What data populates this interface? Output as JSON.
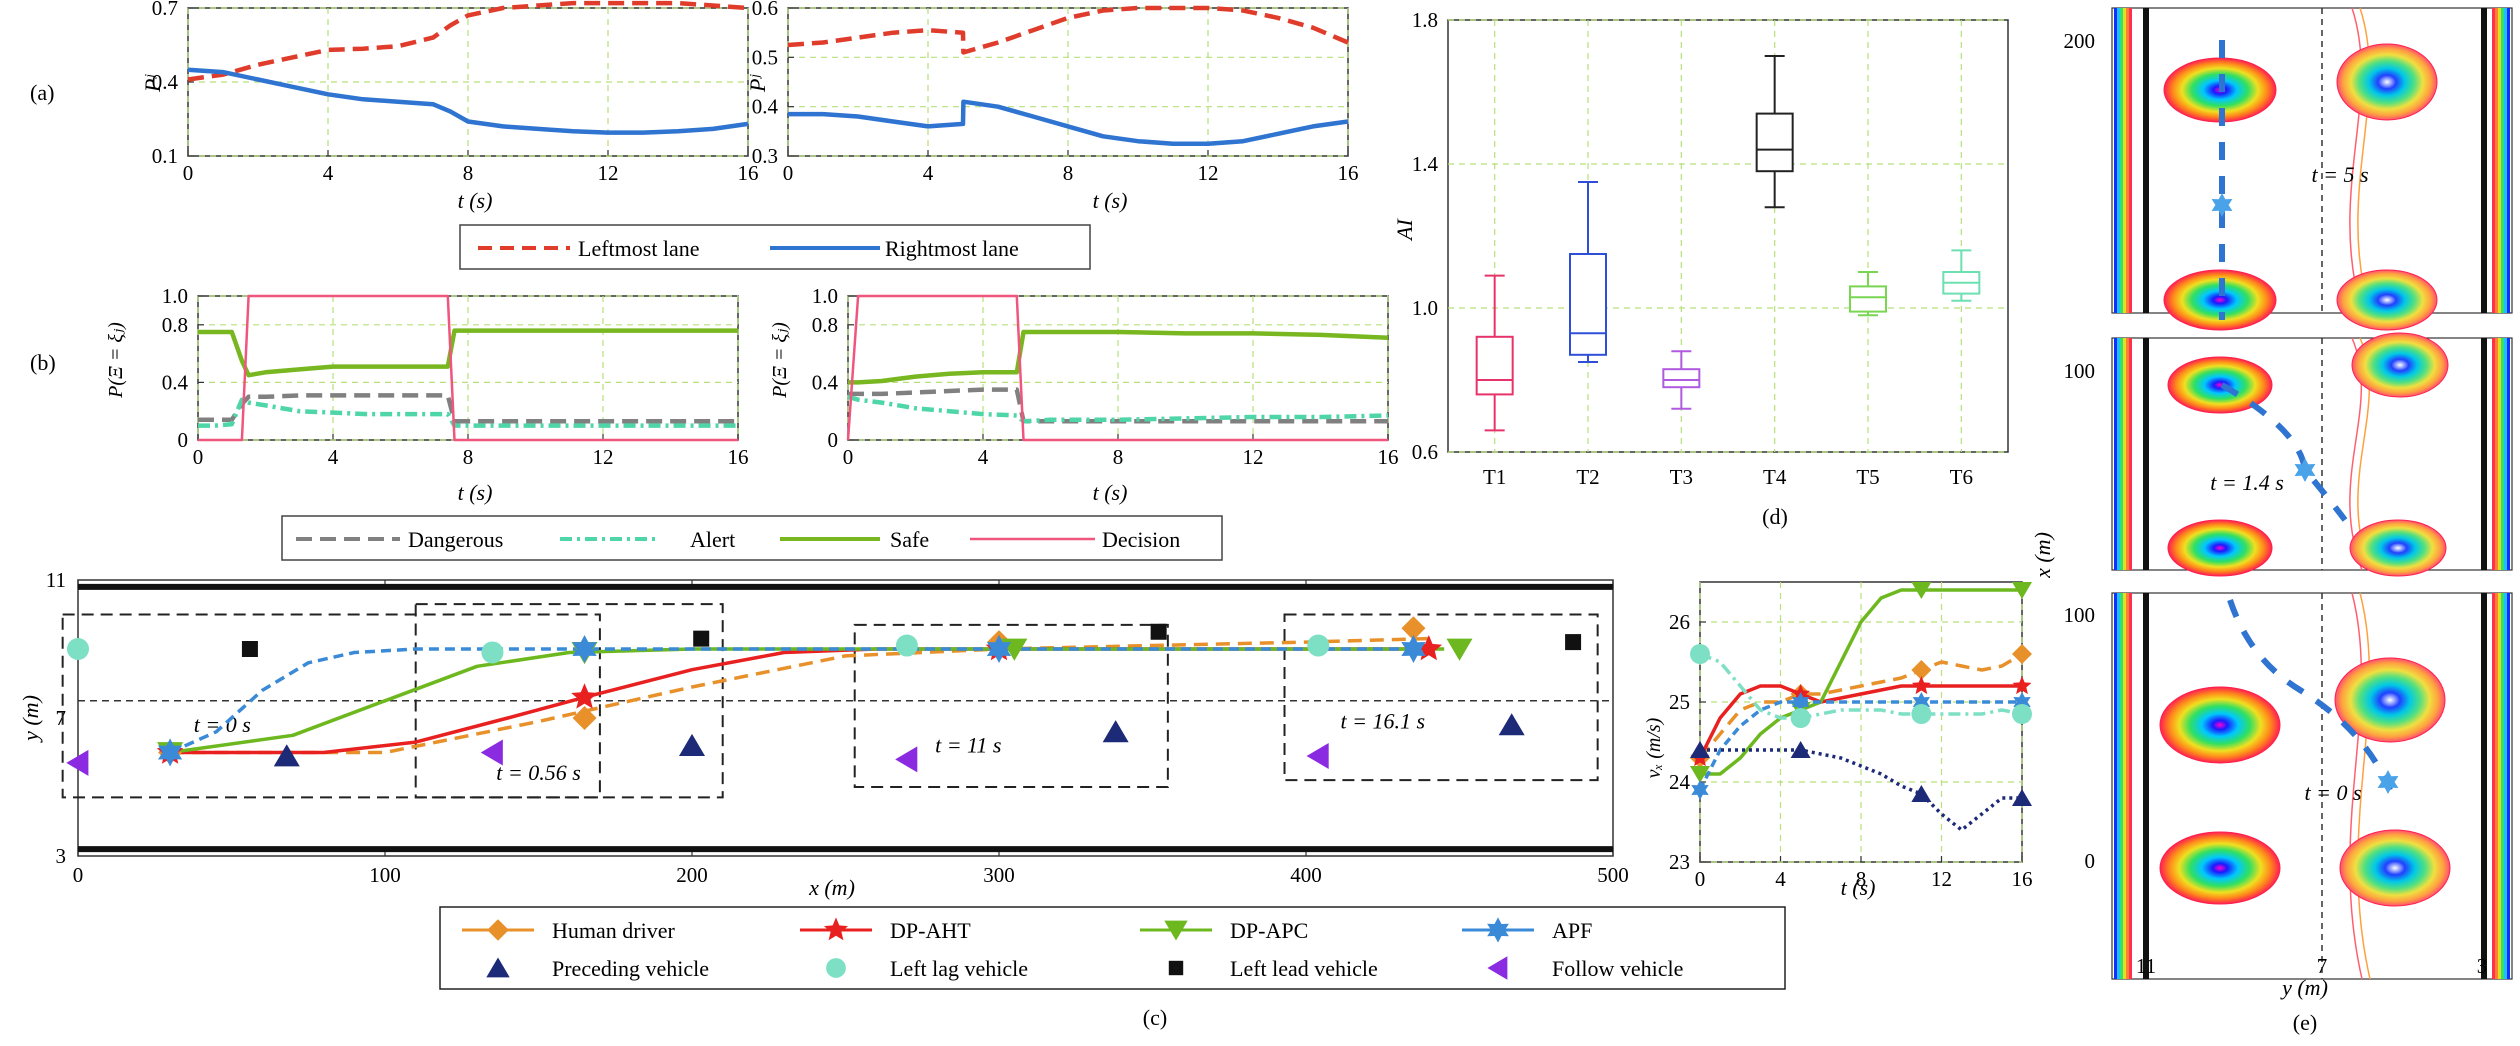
{
  "panels": {
    "a": {
      "label": "(a)",
      "ylabel": "Pʲ",
      "xlabel": "t (s)",
      "legend": [
        "Leftmost lane",
        "Rightmost lane"
      ]
    },
    "b": {
      "label": "(b)",
      "ylabel": "P(Ξ = ξⱼ)",
      "xlabel": "t (s)",
      "legend": [
        "Dangerous",
        "Alert",
        "Safe",
        "Decision"
      ]
    },
    "c": {
      "label": "(c)",
      "xlabel": "x (m)",
      "ylabel": "y (m)",
      "legend": [
        "Human driver",
        "DP-AHT",
        "DP-APC",
        "APF",
        "Preceding vehicle",
        "Left lag vehicle",
        "Left lead vehicle",
        "Follow vehicle"
      ],
      "time_labels": [
        "t = 0 s",
        "t = 0.56 s",
        "t = 11 s",
        "t = 16.1 s"
      ]
    },
    "d": {
      "label": "(d)",
      "ylabel": "AI"
    },
    "e": {
      "label": "(e)",
      "xlabel": "y (m)",
      "ylabel": "x (m)",
      "time_labels": [
        "t = 5 s",
        "t = 1.4 s",
        "t = 0 s"
      ]
    },
    "v": {
      "ylabel": "vₓ (m/s)",
      "xlabel": "t (s)"
    }
  },
  "colors": {
    "left": "#e03c2c",
    "right": "#2f74d0",
    "danger": "#808080",
    "alert": "#4fd6a8",
    "safe": "#78b71f",
    "decision": "#f0557d",
    "human": "#e8902a",
    "dpaht": "#e82020",
    "dpapc": "#6cb81e",
    "apf": "#3a8ad8",
    "preceding": "#1c2a78",
    "laglight": "#7de0c4",
    "lead": "#111111",
    "follow": "#8a2be2"
  },
  "chart_data": [
    {
      "id": "a-left",
      "type": "line",
      "xlim": [
        0,
        16
      ],
      "ylim": [
        0.1,
        0.7
      ],
      "yticks": [
        "0.1",
        "0.4",
        "0.7"
      ],
      "xticks": [
        "0",
        "4",
        "8",
        "12",
        "16"
      ],
      "x": [
        0,
        1,
        2,
        3,
        4,
        5,
        6,
        7,
        7.5,
        8,
        9,
        10,
        11,
        12,
        13,
        14,
        15,
        16
      ],
      "series": [
        {
          "name": "Leftmost lane",
          "values": [
            0.41,
            0.43,
            0.47,
            0.5,
            0.53,
            0.535,
            0.545,
            0.58,
            0.63,
            0.67,
            0.7,
            0.71,
            0.72,
            0.72,
            0.72,
            0.72,
            0.71,
            0.7
          ]
        },
        {
          "name": "Rightmost lane",
          "values": [
            0.45,
            0.44,
            0.41,
            0.38,
            0.35,
            0.33,
            0.32,
            0.31,
            0.28,
            0.24,
            0.22,
            0.21,
            0.2,
            0.195,
            0.195,
            0.2,
            0.21,
            0.23
          ]
        }
      ]
    },
    {
      "id": "a-right",
      "type": "line",
      "xlim": [
        0,
        16
      ],
      "ylim": [
        0.3,
        0.6
      ],
      "yticks": [
        "0.3",
        "0.4",
        "0.5",
        "0.6"
      ],
      "xticks": [
        "0",
        "4",
        "8",
        "12",
        "16"
      ],
      "x": [
        0,
        1,
        2,
        3,
        4,
        5,
        5.01,
        6,
        7,
        8,
        9,
        10,
        11,
        12,
        13,
        14,
        15,
        16
      ],
      "series": [
        {
          "name": "Leftmost lane",
          "values": [
            0.525,
            0.53,
            0.54,
            0.55,
            0.555,
            0.55,
            0.51,
            0.53,
            0.555,
            0.58,
            0.595,
            0.6,
            0.6,
            0.6,
            0.595,
            0.58,
            0.56,
            0.53
          ]
        },
        {
          "name": "Rightmost lane",
          "values": [
            0.385,
            0.385,
            0.38,
            0.37,
            0.36,
            0.365,
            0.41,
            0.4,
            0.38,
            0.36,
            0.34,
            0.33,
            0.325,
            0.325,
            0.33,
            0.345,
            0.36,
            0.37
          ]
        }
      ]
    },
    {
      "id": "b-left",
      "type": "line",
      "xlim": [
        0,
        16
      ],
      "ylim": [
        0,
        1.0
      ],
      "yticks": [
        "0",
        "0.4",
        "0.8",
        "1.0"
      ],
      "xticks": [
        "0",
        "4",
        "8",
        "12",
        "16"
      ],
      "x": [
        0,
        0.5,
        1,
        1.3,
        1.5,
        2,
        3,
        4,
        5,
        6,
        7,
        7.4,
        7.6,
        8,
        9,
        10,
        11,
        12,
        13,
        14,
        15,
        16
      ],
      "series": [
        {
          "name": "Dangerous",
          "values": [
            0.14,
            0.14,
            0.14,
            0.25,
            0.3,
            0.3,
            0.31,
            0.31,
            0.31,
            0.31,
            0.31,
            0.31,
            0.13,
            0.13,
            0.13,
            0.13,
            0.13,
            0.13,
            0.13,
            0.13,
            0.13,
            0.13
          ]
        },
        {
          "name": "Alert",
          "values": [
            0.1,
            0.1,
            0.11,
            0.28,
            0.26,
            0.24,
            0.2,
            0.19,
            0.18,
            0.18,
            0.18,
            0.18,
            0.1,
            0.1,
            0.1,
            0.1,
            0.1,
            0.1,
            0.1,
            0.1,
            0.1,
            0.1
          ]
        },
        {
          "name": "Safe",
          "values": [
            0.75,
            0.75,
            0.75,
            0.55,
            0.45,
            0.47,
            0.49,
            0.51,
            0.51,
            0.51,
            0.51,
            0.51,
            0.76,
            0.76,
            0.76,
            0.76,
            0.76,
            0.76,
            0.76,
            0.76,
            0.76,
            0.76
          ]
        },
        {
          "name": "Decision",
          "values": [
            0,
            0,
            0,
            0,
            1,
            1,
            1,
            1,
            1,
            1,
            1,
            1,
            0,
            0,
            0,
            0,
            0,
            0,
            0,
            0,
            0,
            0
          ]
        }
      ]
    },
    {
      "id": "b-right",
      "type": "line",
      "xlim": [
        0,
        16
      ],
      "ylim": [
        0,
        1.0
      ],
      "yticks": [
        "0",
        "0.4",
        "0.8",
        "1.0"
      ],
      "xticks": [
        "0",
        "4",
        "8",
        "12",
        "16"
      ],
      "x": [
        0,
        0.3,
        1,
        2,
        3,
        4,
        5,
        5.2,
        6,
        8,
        10,
        12,
        14,
        16
      ],
      "series": [
        {
          "name": "Dangerous",
          "values": [
            0.32,
            0.32,
            0.32,
            0.33,
            0.34,
            0.35,
            0.35,
            0.13,
            0.13,
            0.13,
            0.13,
            0.13,
            0.13,
            0.13
          ]
        },
        {
          "name": "Alert",
          "values": [
            0.3,
            0.28,
            0.26,
            0.22,
            0.2,
            0.18,
            0.17,
            0.13,
            0.14,
            0.14,
            0.15,
            0.16,
            0.16,
            0.17
          ]
        },
        {
          "name": "Safe",
          "values": [
            0.4,
            0.4,
            0.41,
            0.44,
            0.46,
            0.47,
            0.47,
            0.75,
            0.75,
            0.75,
            0.74,
            0.74,
            0.73,
            0.71
          ]
        },
        {
          "name": "Decision",
          "values": [
            0,
            1,
            1,
            1,
            1,
            1,
            1,
            0,
            0,
            0,
            0,
            0,
            0,
            0
          ]
        }
      ]
    },
    {
      "id": "d",
      "type": "box",
      "ylim": [
        0.6,
        1.8
      ],
      "yticks": [
        "0.6",
        "1.0",
        "1.4",
        "1.8"
      ],
      "categories": [
        "T1",
        "T2",
        "T3",
        "T4",
        "T5",
        "T6"
      ],
      "boxes": [
        {
          "name": "T1",
          "min": 0.66,
          "q1": 0.76,
          "median": 0.8,
          "q3": 0.92,
          "max": 1.09,
          "color": "#e8336a"
        },
        {
          "name": "T2",
          "min": 0.85,
          "q1": 0.87,
          "median": 0.93,
          "q3": 1.15,
          "max": 1.35,
          "color": "#2f4fd8"
        },
        {
          "name": "T3",
          "min": 0.72,
          "q1": 0.78,
          "median": 0.8,
          "q3": 0.83,
          "max": 0.88,
          "color": "#b05ae0"
        },
        {
          "name": "T4",
          "min": 1.28,
          "q1": 1.38,
          "median": 1.44,
          "q3": 1.54,
          "max": 1.7,
          "color": "#222222"
        },
        {
          "name": "T5",
          "min": 0.98,
          "q1": 0.99,
          "median": 1.03,
          "q3": 1.06,
          "max": 1.1,
          "color": "#78d650"
        },
        {
          "name": "T6",
          "min": 1.02,
          "q1": 1.04,
          "median": 1.07,
          "q3": 1.1,
          "max": 1.16,
          "color": "#6ce0b0"
        }
      ]
    },
    {
      "id": "c",
      "type": "scatter",
      "xlim": [
        0,
        500
      ],
      "ylim": [
        3,
        11
      ],
      "xticks": [
        "0",
        "100",
        "200",
        "300",
        "400",
        "500"
      ],
      "yticks": [
        "3",
        "7",
        "11"
      ],
      "trajectories": [
        {
          "name": "Human driver",
          "x": [
            30,
            100,
            150,
            200,
            250,
            300,
            350,
            400,
            440
          ],
          "y": [
            6,
            6,
            6.9,
            7.9,
            8.8,
            9.0,
            9.1,
            9.2,
            9.3
          ]
        },
        {
          "name": "DP-AHT",
          "x": [
            30,
            80,
            110,
            140,
            165,
            200,
            230,
            260,
            300,
            440
          ],
          "y": [
            6,
            6,
            6.3,
            7.0,
            7.6,
            8.4,
            8.9,
            9.0,
            9.0,
            9.0
          ]
        },
        {
          "name": "DP-APC",
          "x": [
            30,
            70,
            100,
            130,
            160,
            200,
            300,
            445
          ],
          "y": [
            6,
            6.5,
            7.5,
            8.5,
            8.9,
            9.0,
            9.0,
            9.0
          ]
        },
        {
          "name": "APF",
          "x": [
            30,
            45,
            60,
            75,
            90,
            110,
            160,
            300,
            435
          ],
          "y": [
            6,
            6.6,
            7.8,
            8.6,
            8.9,
            9.0,
            9.0,
            9.0,
            9.0
          ]
        }
      ],
      "markers": [
        {
          "name": "Preceding vehicle",
          "points": [
            [
              68,
              5.9
            ],
            [
              200,
              6.2
            ],
            [
              338,
              6.6
            ],
            [
              467,
              6.8
            ]
          ]
        },
        {
          "name": "Left lag vehicle",
          "points": [
            [
              0,
              9.0
            ],
            [
              135,
              8.9
            ],
            [
              270,
              9.1
            ],
            [
              404,
              9.1
            ]
          ]
        },
        {
          "name": "Left lead vehicle",
          "points": [
            [
              56,
              9.0
            ],
            [
              203,
              9.3
            ],
            [
              352,
              9.5
            ],
            [
              487,
              9.2
            ]
          ]
        },
        {
          "name": "Follow vehicle",
          "points": [
            [
              0,
              5.7
            ],
            [
              135,
              6.0
            ],
            [
              270,
              5.8
            ],
            [
              404,
              5.9
            ]
          ]
        },
        {
          "name": "Human driver",
          "points": [
            [
              30,
              6
            ],
            [
              165,
              7.0
            ],
            [
              300,
              9.2
            ],
            [
              435,
              9.6
            ]
          ]
        },
        {
          "name": "DP-AHT",
          "points": [
            [
              30,
              6
            ],
            [
              165,
              7.6
            ],
            [
              300,
              9.0
            ],
            [
              440,
              9.0
            ]
          ]
        },
        {
          "name": "DP-APC",
          "points": [
            [
              30,
              6
            ],
            [
              165,
              8.9
            ],
            [
              305,
              9.0
            ],
            [
              450,
              9.0
            ]
          ]
        },
        {
          "name": "APF",
          "points": [
            [
              30,
              6
            ],
            [
              165,
              9.0
            ],
            [
              300,
              9.0
            ],
            [
              435,
              9.0
            ]
          ]
        }
      ]
    },
    {
      "id": "v",
      "type": "line",
      "xlim": [
        0,
        16
      ],
      "ylim": [
        23,
        26.5
      ],
      "yticks": [
        "23",
        "24",
        "25",
        "26"
      ],
      "xticks": [
        "0",
        "4",
        "8",
        "12",
        "16"
      ],
      "x": [
        0,
        1,
        2,
        3,
        4,
        5,
        6,
        7,
        8,
        9,
        10,
        11,
        12,
        13,
        14,
        15,
        16
      ],
      "series": [
        {
          "name": "Human driver",
          "values": [
            24.3,
            24.6,
            24.9,
            25.0,
            25.0,
            25.1,
            25.1,
            25.15,
            25.2,
            25.25,
            25.3,
            25.4,
            25.5,
            25.45,
            25.4,
            25.45,
            25.6
          ]
        },
        {
          "name": "DP-AHT",
          "values": [
            24.3,
            24.8,
            25.1,
            25.2,
            25.2,
            25.1,
            25.0,
            25.05,
            25.1,
            25.15,
            25.2,
            25.2,
            25.2,
            25.2,
            25.2,
            25.2,
            25.2
          ]
        },
        {
          "name": "DP-APC",
          "values": [
            24.1,
            24.1,
            24.3,
            24.6,
            24.8,
            24.9,
            25.0,
            25.5,
            26.0,
            26.3,
            26.4,
            26.4,
            26.4,
            26.4,
            26.4,
            26.4,
            26.4
          ]
        },
        {
          "name": "APF",
          "values": [
            23.9,
            24.4,
            24.7,
            24.9,
            25.0,
            25.0,
            25.0,
            25.0,
            25.0,
            25.0,
            25.0,
            25.0,
            25.0,
            25.0,
            25.0,
            25.0,
            25.0
          ]
        },
        {
          "name": "Left lag vehicle",
          "values": [
            25.6,
            25.5,
            25.2,
            24.9,
            24.8,
            24.8,
            24.85,
            24.9,
            24.9,
            24.9,
            24.85,
            24.85,
            24.85,
            24.85,
            24.85,
            24.9,
            24.85
          ]
        },
        {
          "name": "Preceding vehicle",
          "values": [
            24.4,
            24.4,
            24.4,
            24.4,
            24.4,
            24.4,
            24.35,
            24.3,
            24.2,
            24.1,
            23.95,
            23.85,
            23.6,
            23.4,
            23.6,
            23.8,
            23.8
          ]
        }
      ]
    },
    {
      "id": "e",
      "type": "heatmap",
      "xlabel": "y (m)",
      "ylabel": "x (m)",
      "xticks": [
        "11",
        "7",
        "3"
      ],
      "yticks": [
        "0",
        "100",
        "100",
        "200"
      ]
    }
  ]
}
